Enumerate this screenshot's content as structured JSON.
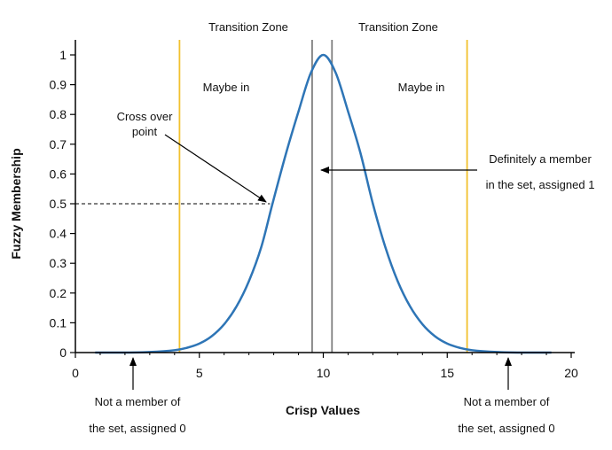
{
  "chart_data": {
    "type": "line",
    "xlabel": "Crisp Values",
    "ylabel": "Fuzzy Membership",
    "xlim": [
      0,
      20
    ],
    "ylim": [
      0,
      1.05
    ],
    "xticks": [
      "0",
      "5",
      "10",
      "15",
      "20"
    ],
    "yticks": [
      "0",
      "0.1",
      "0.2",
      "0.3",
      "0.4",
      "0.5",
      "0.6",
      "0.7",
      "0.8",
      "0.9",
      "1"
    ],
    "grid": false,
    "series": [
      {
        "color": "#2e75b6",
        "x": [
          0.8,
          2,
          3,
          4,
          4.5,
          5,
          5.5,
          6,
          6.5,
          7,
          7.5,
          7.95,
          8.5,
          9,
          9.5,
          10,
          10.5,
          11,
          11.5,
          12,
          12.5,
          13,
          13.5,
          14,
          14.5,
          15,
          15.5,
          16,
          17,
          18,
          19.2
        ],
        "y": [
          0,
          0,
          0.002,
          0.008,
          0.016,
          0.03,
          0.055,
          0.095,
          0.155,
          0.24,
          0.355,
          0.5,
          0.67,
          0.81,
          0.94,
          1.0,
          0.94,
          0.81,
          0.67,
          0.5,
          0.355,
          0.24,
          0.155,
          0.095,
          0.055,
          0.03,
          0.016,
          0.008,
          0.002,
          0,
          0
        ]
      }
    ],
    "vertical_lines": [
      {
        "x": 4.2,
        "color": "#f2c12e"
      },
      {
        "x": 9.55,
        "color": "#7f7f7f"
      },
      {
        "x": 10.35,
        "color": "#7f7f7f"
      },
      {
        "x": 15.8,
        "color": "#f2c12e"
      }
    ],
    "dashed_reference": {
      "y": 0.5,
      "x_from": 0,
      "x_to": 7.85
    },
    "annotations": {
      "transition_zone_left": "Transition Zone",
      "transition_zone_right": "Transition Zone",
      "maybe_left": "Maybe in",
      "maybe_right": "Maybe in",
      "crossover_line1": "Cross over",
      "crossover_line2": "point",
      "definitely_line1": "Definitely a member",
      "definitely_line2": "in the set, assigned 1",
      "not_member_left_line1": "Not a member of",
      "not_member_left_line2": "the set, assigned 0",
      "not_member_right_line1": "Not a member of",
      "not_member_right_line2": "the set, assigned 0"
    }
  }
}
